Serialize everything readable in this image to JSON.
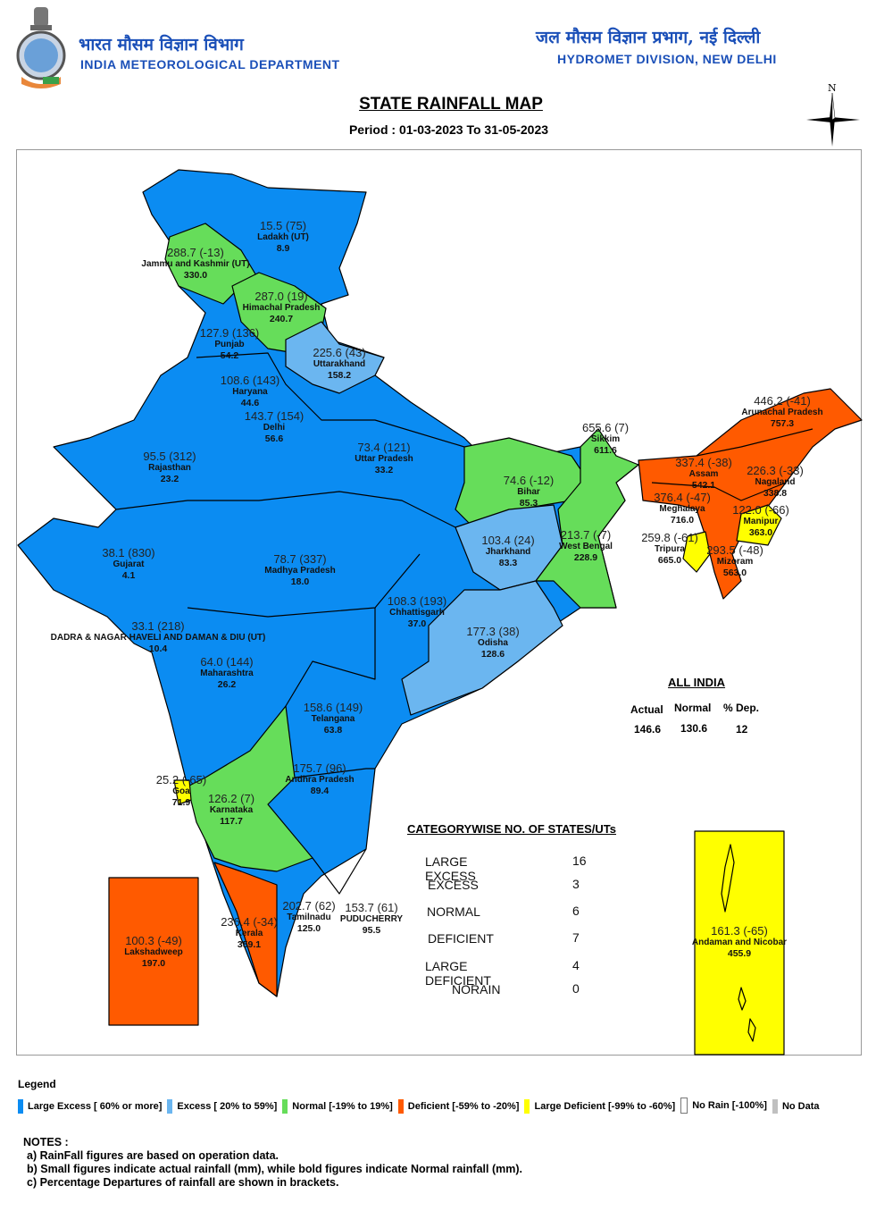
{
  "header": {
    "left_hindi": "भारत मौसम विज्ञान विभाग",
    "left_english": "INDIA METEOROLOGICAL DEPARTMENT",
    "right_hindi": "जल मौसम विज्ञान प्रभाग, नई दिल्ली",
    "right_english": "HYDROMET DIVISION, NEW DELHI",
    "compass_letter": "N"
  },
  "title": "STATE RAINFALL MAP",
  "period": "Period : 01-03-2023 To 31-05-2023",
  "colors": {
    "large_excess": "#0b8cf2",
    "excess": "#6bb6f0",
    "normal": "#66dd5a",
    "deficient": "#ff5a00",
    "large_deficient": "#ffff00",
    "no_rain": "#ffffff",
    "no_data": "#c0c0c0"
  },
  "states": [
    {
      "name": "Ladakh (UT)",
      "actual": "15.5",
      "dep": "(75)",
      "normal": "8.9",
      "category": "large_excess"
    },
    {
      "name": "Jammu and Kashmir (UT)",
      "actual": "288.7",
      "dep": "(-13)",
      "normal": "330.0",
      "category": "normal"
    },
    {
      "name": "Himachal Pradesh",
      "actual": "287.0",
      "dep": "(19)",
      "normal": "240.7",
      "category": "normal"
    },
    {
      "name": "Punjab",
      "actual": "127.9",
      "dep": "(136)",
      "normal": "54.2",
      "category": "large_excess"
    },
    {
      "name": "Uttarakhand",
      "actual": "225.6",
      "dep": "(43)",
      "normal": "158.2",
      "category": "excess"
    },
    {
      "name": "Haryana",
      "actual": "108.6",
      "dep": "(143)",
      "normal": "44.6",
      "category": "large_excess"
    },
    {
      "name": "Delhi",
      "actual": "143.7",
      "dep": "(154)",
      "normal": "56.6",
      "category": "large_excess"
    },
    {
      "name": "Rajasthan",
      "actual": "95.5",
      "dep": "(312)",
      "normal": "23.2",
      "category": "large_excess"
    },
    {
      "name": "Uttar Pradesh",
      "actual": "73.4",
      "dep": "(121)",
      "normal": "33.2",
      "category": "large_excess"
    },
    {
      "name": "Bihar",
      "actual": "74.6",
      "dep": "(-12)",
      "normal": "85.3",
      "category": "normal"
    },
    {
      "name": "Sikkim",
      "actual": "655.6",
      "dep": "(7)",
      "normal": "611.6",
      "category": "normal"
    },
    {
      "name": "Arunachal Pradesh",
      "actual": "446.2",
      "dep": "(-41)",
      "normal": "757.3",
      "category": "deficient"
    },
    {
      "name": "Assam",
      "actual": "337.4",
      "dep": "(-38)",
      "normal": "542.1",
      "category": "deficient"
    },
    {
      "name": "Nagaland",
      "actual": "226.3",
      "dep": "(-33)",
      "normal": "338.8",
      "category": "deficient"
    },
    {
      "name": "Meghalaya",
      "actual": "376.4",
      "dep": "(-47)",
      "normal": "716.0",
      "category": "deficient"
    },
    {
      "name": "Manipur",
      "actual": "122.0",
      "dep": "(-66)",
      "normal": "363.0",
      "category": "large_deficient"
    },
    {
      "name": "Tripura",
      "actual": "259.8",
      "dep": "(-61)",
      "normal": "665.0",
      "category": "large_deficient"
    },
    {
      "name": "Mizoram",
      "actual": "293.5",
      "dep": "(-48)",
      "normal": "563.0",
      "category": "deficient"
    },
    {
      "name": "West Bengal",
      "actual": "213.7",
      "dep": "(-7)",
      "normal": "228.9",
      "category": "normal"
    },
    {
      "name": "Jharkhand",
      "actual": "103.4",
      "dep": "(24)",
      "normal": "83.3",
      "category": "excess"
    },
    {
      "name": "Gujarat",
      "actual": "38.1",
      "dep": "(830)",
      "normal": "4.1",
      "category": "large_excess"
    },
    {
      "name": "Madhya Pradesh",
      "actual": "78.7",
      "dep": "(337)",
      "normal": "18.0",
      "category": "large_excess"
    },
    {
      "name": "Chhattisgarh",
      "actual": "108.3",
      "dep": "(193)",
      "normal": "37.0",
      "category": "large_excess"
    },
    {
      "name": "DADRA & NAGAR HAVELI AND DAMAN & DIU (UT)",
      "actual": "33.1",
      "dep": "(218)",
      "normal": "10.4",
      "category": "large_excess"
    },
    {
      "name": "Odisha",
      "actual": "177.3",
      "dep": "(38)",
      "normal": "128.6",
      "category": "excess"
    },
    {
      "name": "Maharashtra",
      "actual": "64.0",
      "dep": "(144)",
      "normal": "26.2",
      "category": "large_excess"
    },
    {
      "name": "Telangana",
      "actual": "158.6",
      "dep": "(149)",
      "normal": "63.8",
      "category": "large_excess"
    },
    {
      "name": "Andhra Pradesh",
      "actual": "175.7",
      "dep": "(96)",
      "normal": "89.4",
      "category": "large_excess"
    },
    {
      "name": "Goa",
      "actual": "25.2",
      "dep": "(-65)",
      "normal": "71.9",
      "category": "large_deficient"
    },
    {
      "name": "Karnataka",
      "actual": "126.2",
      "dep": "(7)",
      "normal": "117.7",
      "category": "normal"
    },
    {
      "name": "Kerala",
      "actual": "236.4",
      "dep": "(-34)",
      "normal": "359.1",
      "category": "deficient"
    },
    {
      "name": "Tamilnadu",
      "actual": "202.7",
      "dep": "(62)",
      "normal": "125.0",
      "category": "large_excess"
    },
    {
      "name": "PUDUCHERRY",
      "actual": "153.7",
      "dep": "(61)",
      "normal": "95.5",
      "category": "large_excess"
    },
    {
      "name": "Lakshadweep",
      "actual": "100.3",
      "dep": "(-49)",
      "normal": "197.0",
      "category": "deficient"
    },
    {
      "name": "Andaman and Nicobar",
      "actual": "161.3",
      "dep": "(-65)",
      "normal": "455.9",
      "category": "large_deficient"
    }
  ],
  "all_india": {
    "title": "ALL INDIA",
    "headers": [
      "Actual",
      "Normal",
      "% Dep."
    ],
    "values": [
      "146.6",
      "130.6",
      "12"
    ]
  },
  "categorywise": {
    "title": "CATEGORYWISE NO. OF STATES/UTs",
    "rows": [
      {
        "label": "LARGE EXCESS",
        "count": "16"
      },
      {
        "label": "EXCESS",
        "count": "3"
      },
      {
        "label": "NORMAL",
        "count": "6"
      },
      {
        "label": "DEFICIENT",
        "count": "7"
      },
      {
        "label": "LARGE DEFICIENT",
        "count": "4"
      },
      {
        "label": "NORAIN",
        "count": "0"
      }
    ]
  },
  "legend": {
    "title": "Legend",
    "items": [
      {
        "label": "Large Excess [ 60% or more]",
        "color": "#0b8cf2"
      },
      {
        "label": "Excess [ 20% to 59%]",
        "color": "#6bb6f0"
      },
      {
        "label": "Normal [-19% to 19%]",
        "color": "#66dd5a"
      },
      {
        "label": "Deficient [-59% to -20%]",
        "color": "#ff5a00"
      },
      {
        "label": "Large Deficient [-99% to -60%]",
        "color": "#ffff00"
      },
      {
        "label": "No Rain  [-100%]",
        "color": "#ffffff"
      },
      {
        "label": "No Data",
        "color": "#c0c0c0"
      }
    ]
  },
  "notes": {
    "title": "NOTES :",
    "lines": [
      "a) RainFall figures are based on operation data.",
      "b) Small figures indicate actual rainfall (mm), while bold figures indicate Normal rainfall (mm).",
      "c) Percentage Departures of rainfall are shown in brackets."
    ]
  }
}
